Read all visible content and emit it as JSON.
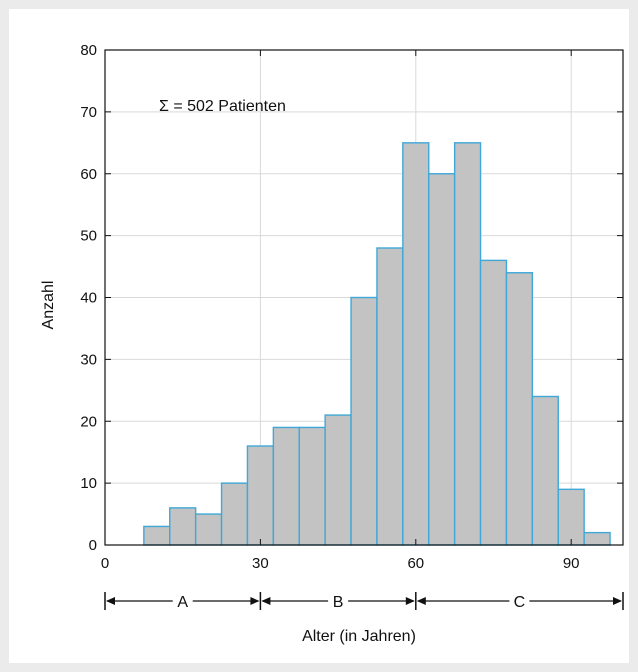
{
  "chart_data": {
    "type": "bar",
    "annotation": "Σ = 502 Patienten",
    "xlabel": "Alter (in Jahren)",
    "ylabel": "Anzahl",
    "xlim": [
      0,
      100
    ],
    "ylim": [
      0,
      80
    ],
    "x_ticks": [
      0,
      30,
      60,
      90
    ],
    "y_ticks": [
      0,
      10,
      20,
      30,
      40,
      50,
      60,
      70,
      80
    ],
    "grid": true,
    "bin_width": 5,
    "bins": [
      {
        "x0": 7.5,
        "value": 3
      },
      {
        "x0": 12.5,
        "value": 6
      },
      {
        "x0": 17.5,
        "value": 5
      },
      {
        "x0": 22.5,
        "value": 10
      },
      {
        "x0": 27.5,
        "value": 16
      },
      {
        "x0": 32.5,
        "value": 19
      },
      {
        "x0": 37.5,
        "value": 19
      },
      {
        "x0": 42.5,
        "value": 21
      },
      {
        "x0": 47.5,
        "value": 40
      },
      {
        "x0": 52.5,
        "value": 48
      },
      {
        "x0": 57.5,
        "value": 65
      },
      {
        "x0": 62.5,
        "value": 60
      },
      {
        "x0": 67.5,
        "value": 65
      },
      {
        "x0": 72.5,
        "value": 46
      },
      {
        "x0": 77.5,
        "value": 44
      },
      {
        "x0": 82.5,
        "value": 24
      },
      {
        "x0": 87.5,
        "value": 9
      },
      {
        "x0": 92.5,
        "value": 2
      }
    ],
    "age_groups": [
      {
        "label": "A",
        "from": 0,
        "to": 30
      },
      {
        "label": "B",
        "from": 30,
        "to": 60
      },
      {
        "label": "C",
        "from": 60,
        "to": 100
      }
    ],
    "colors": {
      "bar_fill": "#c3c3c3",
      "bar_stroke": "#3fa8d8",
      "grid": "#d9d9d9",
      "axis": "#111111"
    }
  }
}
